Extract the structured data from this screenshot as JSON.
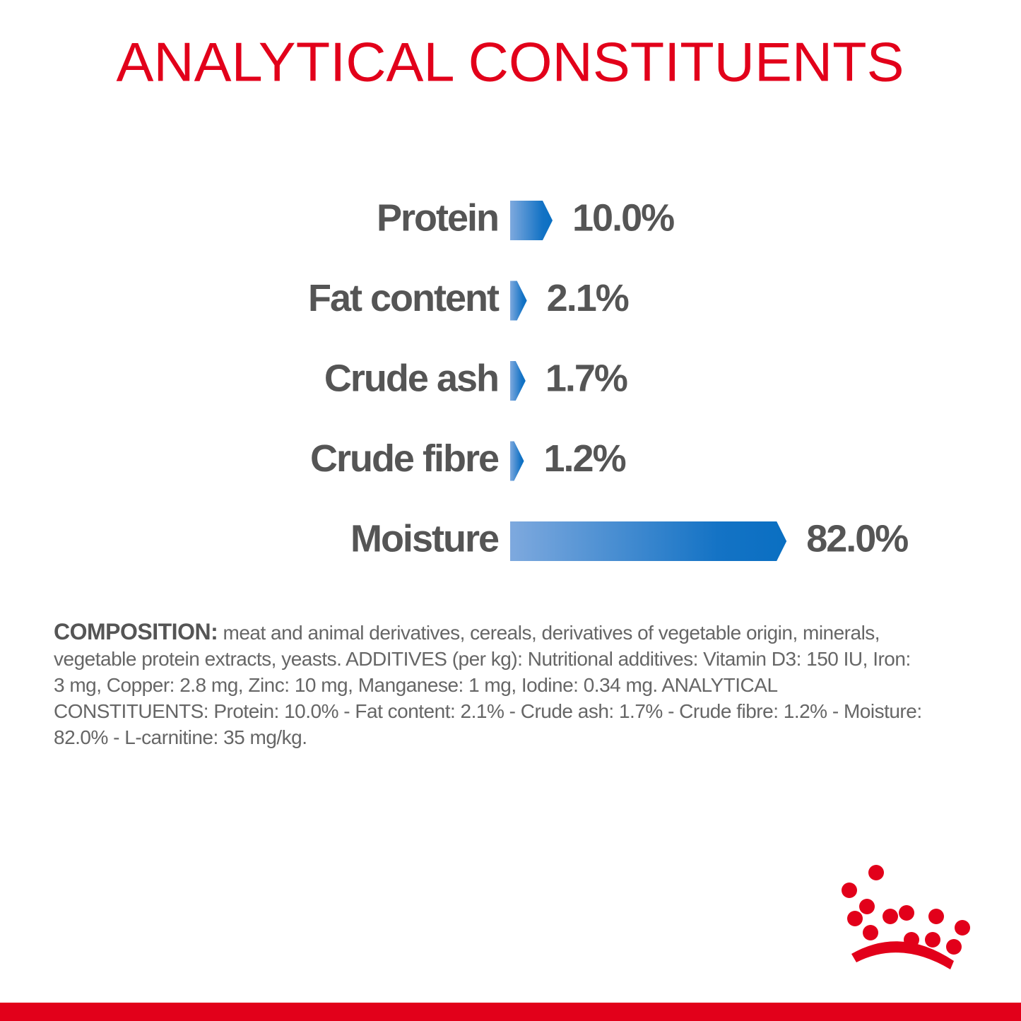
{
  "chart_data": {
    "type": "bar",
    "title": "ANALYTICAL CONSTITUENTS",
    "categories": [
      "Protein",
      "Fat content",
      "Crude ash",
      "Crude fibre",
      "Moisture"
    ],
    "values": [
      10.0,
      2.1,
      1.7,
      1.2,
      82.0
    ],
    "value_labels": [
      "10.0%",
      "2.1%",
      "1.7%",
      "1.2%",
      "82.0%"
    ],
    "color": "#0a6fc2"
  },
  "composition": {
    "label": "COMPOSITION:",
    "text": "meat and animal derivatives, cereals, derivatives of vegetable origin, minerals, vegetable protein extracts, yeasts. ADDITIVES (per kg): Nutritional additives: Vitamin D3: 150 IU, Iron: 3 mg, Copper: 2.8 mg, Zinc: 10 mg, Manganese: 1 mg, Iodine: 0.34 mg. ANALYTICAL CONSTITUENTS: Protein: 10.0% - Fat content: 2.1% - Crude ash: 1.7% - Crude fibre: 1.2% - Moisture: 82.0% - L-carnitine: 35 mg/kg."
  }
}
